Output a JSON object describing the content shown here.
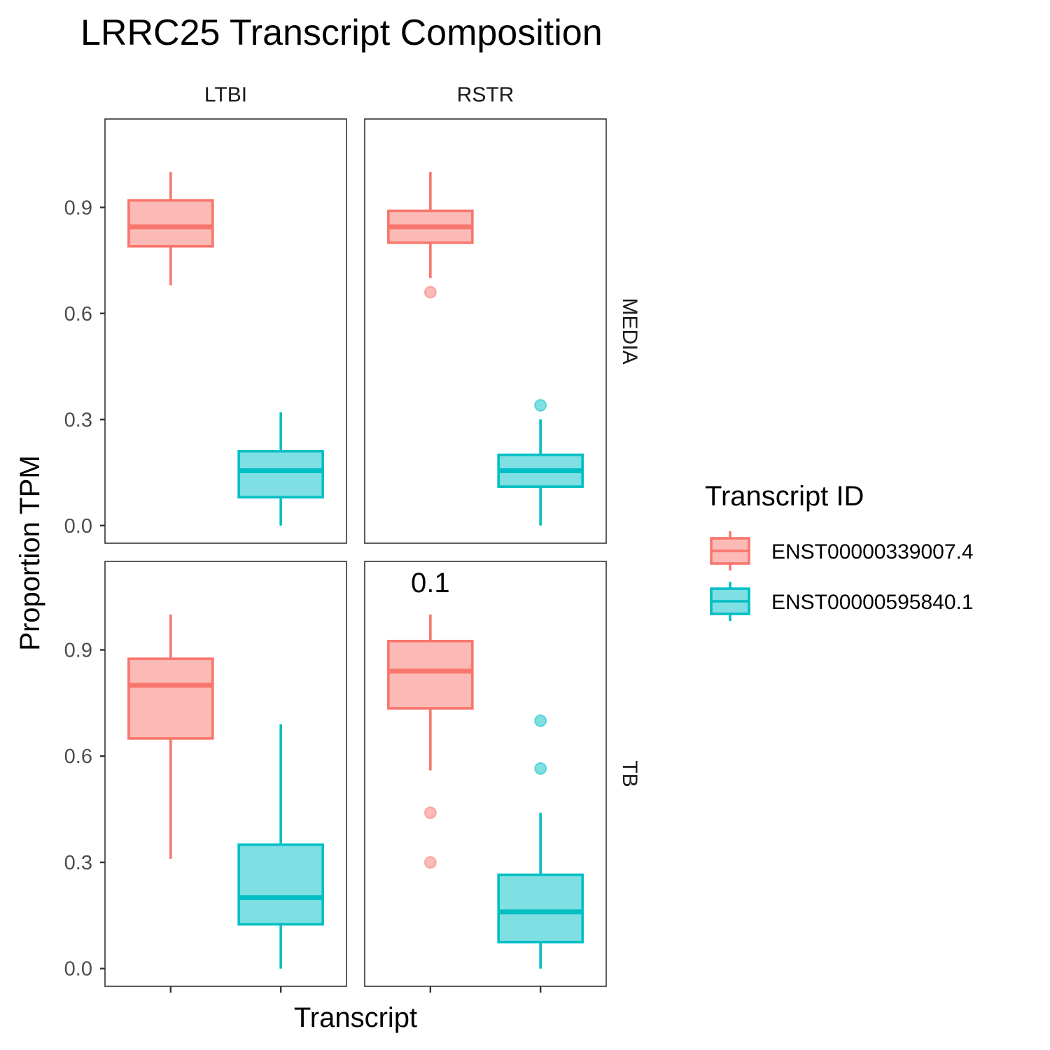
{
  "chart_data": {
    "type": "box",
    "title": "LRRC25 Transcript Composition",
    "xlabel": "Transcript",
    "ylabel": "Proportion TPM",
    "ylim": [
      -0.05,
      1.15
    ],
    "yticks": [
      "0.0",
      "0.3",
      "0.6",
      "0.9"
    ],
    "ytick_values": [
      0.0,
      0.3,
      0.6,
      0.9
    ],
    "grid": false,
    "legend": {
      "title": "Transcript ID",
      "position": "right",
      "entries": [
        {
          "label": "ENST00000339007.4",
          "color": "#F8766D"
        },
        {
          "label": "ENST00000595840.1",
          "color": "#00BFC4"
        }
      ]
    },
    "facet_columns": [
      "LTBI",
      "RSTR"
    ],
    "facet_rows": [
      "MEDIA",
      "TB"
    ],
    "panels": [
      {
        "col": "LTBI",
        "row": "MEDIA",
        "annotation": "",
        "boxes": [
          {
            "series": "ENST00000339007.4",
            "whisker_low": 0.68,
            "q1": 0.79,
            "median": 0.845,
            "q3": 0.92,
            "whisker_high": 1.0,
            "outliers": []
          },
          {
            "series": "ENST00000595840.1",
            "whisker_low": 0.0,
            "q1": 0.08,
            "median": 0.155,
            "q3": 0.21,
            "whisker_high": 0.32,
            "outliers": []
          }
        ]
      },
      {
        "col": "RSTR",
        "row": "MEDIA",
        "annotation": "",
        "boxes": [
          {
            "series": "ENST00000339007.4",
            "whisker_low": 0.7,
            "q1": 0.8,
            "median": 0.845,
            "q3": 0.89,
            "whisker_high": 1.0,
            "outliers": [
              0.66
            ]
          },
          {
            "series": "ENST00000595840.1",
            "whisker_low": 0.0,
            "q1": 0.11,
            "median": 0.155,
            "q3": 0.2,
            "whisker_high": 0.3,
            "outliers": [
              0.34
            ]
          }
        ]
      },
      {
        "col": "LTBI",
        "row": "TB",
        "annotation": "",
        "boxes": [
          {
            "series": "ENST00000339007.4",
            "whisker_low": 0.31,
            "q1": 0.65,
            "median": 0.8,
            "q3": 0.875,
            "whisker_high": 1.0,
            "outliers": []
          },
          {
            "series": "ENST00000595840.1",
            "whisker_low": 0.0,
            "q1": 0.125,
            "median": 0.2,
            "q3": 0.35,
            "whisker_high": 0.69,
            "outliers": []
          }
        ]
      },
      {
        "col": "RSTR",
        "row": "TB",
        "annotation": "0.1",
        "boxes": [
          {
            "series": "ENST00000339007.4",
            "whisker_low": 0.56,
            "q1": 0.735,
            "median": 0.84,
            "q3": 0.925,
            "whisker_high": 1.0,
            "outliers": [
              0.44,
              0.3
            ]
          },
          {
            "series": "ENST00000595840.1",
            "whisker_low": 0.0,
            "q1": 0.075,
            "median": 0.16,
            "q3": 0.265,
            "whisker_high": 0.44,
            "outliers": [
              0.7,
              0.565
            ]
          }
        ]
      }
    ]
  }
}
